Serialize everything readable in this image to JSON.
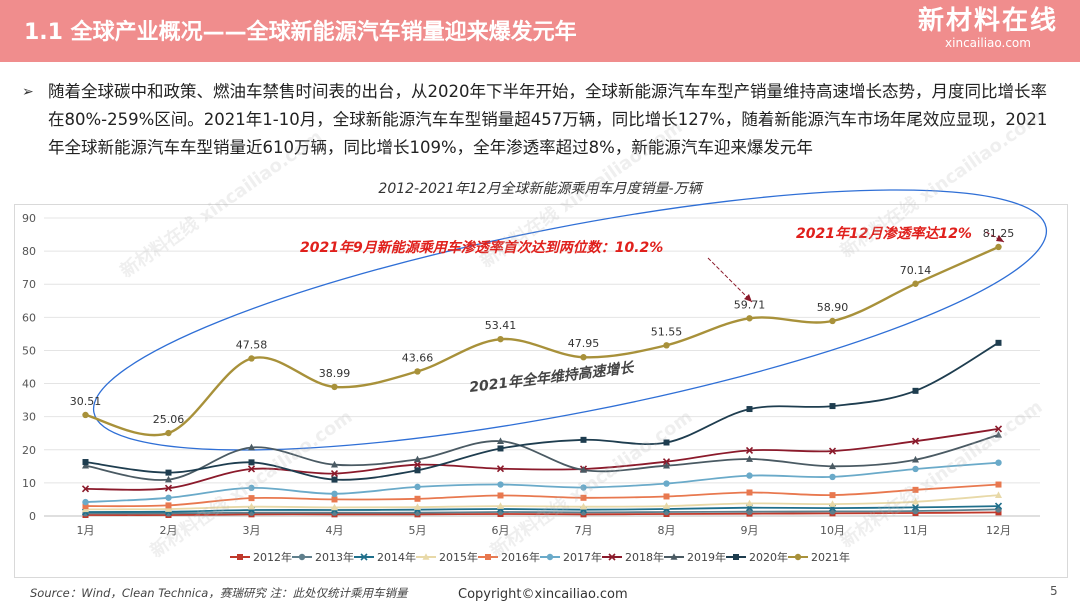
{
  "header": {
    "title": "1.1 全球产业概况——全球新能源汽车销量迎来爆发元年",
    "logo_main": "新材料在线",
    "logo_sub": "xincailiao.com"
  },
  "bullet": {
    "icon": "arrow-right-icon",
    "text": "随着全球碳中和政策、燃油车禁售时间表的出台，从2020年下半年开始，全球新能源汽车车型产销量维持高速增长态势，月度同比增长率在80%-259%区间。2021年1-10月，全球新能源汽车车型销量超457万辆，同比增长127%，随着新能源汽车市场年尾效应显现，2021年全球新能源汽车车型销量近610万辆，同比增长109%，全年渗透率超过8%，新能源汽车迎来爆发元年"
  },
  "footer": {
    "source": "Source：Wind，Clean Technica，赛瑞研究 注：此处仅统计乘用车销量",
    "copyright": "Copyright©xincailiao.com",
    "page": "5"
  },
  "chart_data": {
    "type": "line",
    "title": "2012-2021年12月全球新能源乘用车月度销量-万辆",
    "categories": [
      "1月",
      "2月",
      "3月",
      "4月",
      "5月",
      "6月",
      "7月",
      "8月",
      "9月",
      "10月",
      "11月",
      "12月"
    ],
    "ylim": [
      0,
      90
    ],
    "yticks": [
      "0",
      "10",
      "20",
      "30",
      "40",
      "50",
      "60",
      "70",
      "80",
      "90"
    ],
    "grid": true,
    "legend_position": "bottom",
    "series": [
      {
        "name": "2012年",
        "color": "#c0392b",
        "values": [
          0.3,
          0.3,
          0.5,
          0.5,
          0.5,
          0.6,
          0.5,
          0.6,
          0.7,
          0.8,
          0.9,
          1.1
        ]
      },
      {
        "name": "2013年",
        "color": "#5f7f8c",
        "values": [
          0.8,
          0.8,
          1.0,
          1.0,
          1.0,
          1.2,
          1.1,
          1.2,
          1.3,
          1.4,
          1.5,
          2.0
        ]
      },
      {
        "name": "2014年",
        "color": "#1f6f8b",
        "values": [
          1.2,
          1.3,
          1.8,
          1.8,
          1.9,
          2.1,
          1.9,
          2.1,
          2.5,
          2.4,
          2.6,
          3.0
        ]
      },
      {
        "name": "2015年",
        "color": "#e8d9a8",
        "values": [
          2.0,
          2.1,
          2.8,
          2.6,
          2.7,
          3.0,
          2.8,
          3.0,
          3.8,
          3.6,
          4.3,
          6.3
        ]
      },
      {
        "name": "2016年",
        "color": "#e8784f",
        "values": [
          3.0,
          3.2,
          5.4,
          5.0,
          5.2,
          6.2,
          5.5,
          5.9,
          7.1,
          6.3,
          7.9,
          9.5
        ]
      },
      {
        "name": "2017年",
        "color": "#6aaac9",
        "values": [
          4.2,
          5.5,
          8.5,
          6.7,
          8.8,
          9.5,
          8.6,
          9.8,
          12.2,
          11.8,
          14.2,
          16.1
        ]
      },
      {
        "name": "2018年",
        "color": "#8b1a2b",
        "values": [
          8.2,
          8.4,
          14.2,
          12.8,
          15.5,
          14.3,
          14.2,
          16.4,
          19.8,
          19.6,
          22.6,
          26.3
        ]
      },
      {
        "name": "2019年",
        "color": "#4a5a63",
        "values": [
          15.2,
          11.0,
          20.7,
          15.5,
          17.1,
          22.6,
          13.9,
          15.2,
          17.2,
          15.0,
          17.0,
          24.5
        ]
      },
      {
        "name": "2020年",
        "color": "#1e3d4f",
        "values": [
          16.3,
          13.1,
          16.2,
          11.0,
          13.8,
          20.4,
          23.0,
          22.2,
          32.3,
          33.2,
          37.8,
          52.3
        ]
      },
      {
        "name": "2021年",
        "color": "#a8913a",
        "values": [
          30.51,
          25.06,
          47.58,
          38.99,
          43.66,
          53.41,
          47.95,
          51.55,
          59.71,
          58.9,
          70.14,
          81.25
        ],
        "labels": [
          "30.51",
          "25.06",
          "47.58",
          "38.99",
          "43.66",
          "53.41",
          "47.95",
          "51.55",
          "59.71",
          "58.90",
          "70.14",
          "81.25"
        ]
      }
    ],
    "annotations": [
      {
        "text": "2021年9月新能源乘用车渗透率首次达到两位数：10.2%",
        "color": "#e0201c"
      },
      {
        "text": "2021年12月渗透率达12%",
        "color": "#e0201c"
      },
      {
        "text": "2021年全年维持高速增长",
        "color": "#444444"
      }
    ]
  }
}
